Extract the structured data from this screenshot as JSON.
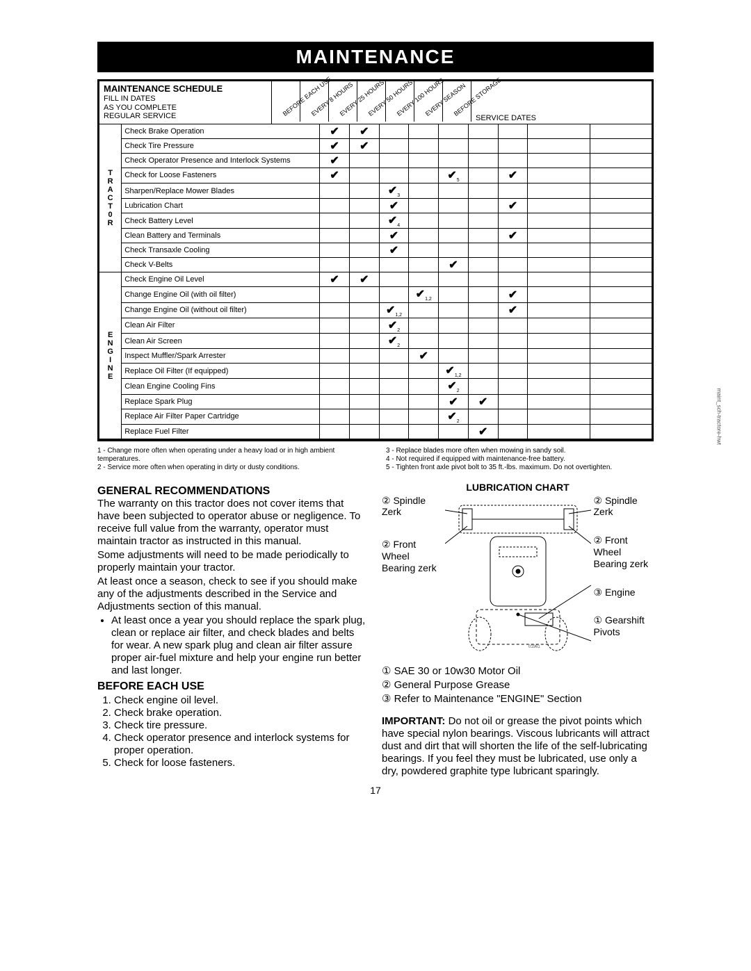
{
  "title": "MAINTENANCE",
  "schedule": {
    "title": "MAINTENANCE SCHEDULE",
    "subtitle": "FILL IN DATES\nAS YOU COMPLETE\nREGULAR SERVICE",
    "column_headers": [
      "BEFORE EACH USE",
      "EVERY 8 HOURS",
      "EVERY 25 HOURS",
      "EVERY 50 HOURS",
      "EVERY 100 HOURS",
      "EVERY SEASON",
      "BEFORE STORAGE"
    ],
    "service_dates_label": "SERVICE DATES",
    "section1_label": "TRACT0R",
    "section2_label": "ENGINE",
    "rows1": [
      {
        "task": "Check Brake Operation",
        "c": [
          1,
          1,
          0,
          0,
          0,
          0,
          0
        ],
        "s": [
          "",
          "",
          "",
          "",
          "",
          "",
          ""
        ]
      },
      {
        "task": "Check Tire Pressure",
        "c": [
          1,
          1,
          0,
          0,
          0,
          0,
          0
        ],
        "s": [
          "",
          "",
          "",
          "",
          "",
          "",
          ""
        ]
      },
      {
        "task": "Check Operator Presence and Interlock Systems",
        "c": [
          1,
          0,
          0,
          0,
          0,
          0,
          0
        ],
        "s": [
          "",
          "",
          "",
          "",
          "",
          "",
          ""
        ]
      },
      {
        "task": "Check for Loose Fasteners",
        "c": [
          1,
          0,
          0,
          0,
          1,
          0,
          1
        ],
        "s": [
          "",
          "",
          "",
          "",
          "5",
          "",
          ""
        ]
      },
      {
        "task": "Sharpen/Replace Mower Blades",
        "c": [
          0,
          0,
          1,
          0,
          0,
          0,
          0
        ],
        "s": [
          "",
          "",
          "3",
          "",
          "",
          "",
          ""
        ]
      },
      {
        "task": "Lubrication Chart",
        "c": [
          0,
          0,
          1,
          0,
          0,
          0,
          1
        ],
        "s": [
          "",
          "",
          "",
          "",
          "",
          "",
          ""
        ]
      },
      {
        "task": "Check Battery Level",
        "c": [
          0,
          0,
          1,
          0,
          0,
          0,
          0
        ],
        "s": [
          "",
          "",
          "4",
          "",
          "",
          "",
          ""
        ]
      },
      {
        "task": "Clean Battery and Terminals",
        "c": [
          0,
          0,
          1,
          0,
          0,
          0,
          1
        ],
        "s": [
          "",
          "",
          "",
          "",
          "",
          "",
          ""
        ]
      },
      {
        "task": "Check Transaxle Cooling",
        "c": [
          0,
          0,
          1,
          0,
          0,
          0,
          0
        ],
        "s": [
          "",
          "",
          "",
          "",
          "",
          "",
          ""
        ]
      },
      {
        "task": "Check V-Belts",
        "c": [
          0,
          0,
          0,
          0,
          1,
          0,
          0
        ],
        "s": [
          "",
          "",
          "",
          "",
          "",
          "",
          ""
        ]
      }
    ],
    "rows2": [
      {
        "task": "Check Engine Oil Level",
        "c": [
          1,
          1,
          0,
          0,
          0,
          0,
          0
        ],
        "s": [
          "",
          "",
          "",
          "",
          "",
          "",
          ""
        ]
      },
      {
        "task": "Change Engine Oil (with oil filter)",
        "c": [
          0,
          0,
          0,
          1,
          0,
          0,
          1
        ],
        "s": [
          "",
          "",
          "",
          "1,2",
          "",
          "",
          ""
        ]
      },
      {
        "task": "Change Engine Oil (without oil filter)",
        "c": [
          0,
          0,
          1,
          0,
          0,
          0,
          1
        ],
        "s": [
          "",
          "",
          "1,2",
          "",
          "",
          "",
          ""
        ]
      },
      {
        "task": "Clean Air Filter",
        "c": [
          0,
          0,
          1,
          0,
          0,
          0,
          0
        ],
        "s": [
          "",
          "",
          "2",
          "",
          "",
          "",
          ""
        ]
      },
      {
        "task": "Clean Air Screen",
        "c": [
          0,
          0,
          1,
          0,
          0,
          0,
          0
        ],
        "s": [
          "",
          "",
          "2",
          "",
          "",
          "",
          ""
        ]
      },
      {
        "task": "Inspect Muffler/Spark Arrester",
        "c": [
          0,
          0,
          0,
          1,
          0,
          0,
          0
        ],
        "s": [
          "",
          "",
          "",
          "",
          "",
          "",
          ""
        ]
      },
      {
        "task": "Replace Oil Filter (If equipped)",
        "c": [
          0,
          0,
          0,
          0,
          1,
          0,
          0
        ],
        "s": [
          "",
          "",
          "",
          "",
          "1,2",
          "",
          ""
        ]
      },
      {
        "task": "Clean Engine Cooling Fins",
        "c": [
          0,
          0,
          0,
          0,
          1,
          0,
          0
        ],
        "s": [
          "",
          "",
          "",
          "",
          "2",
          "",
          ""
        ]
      },
      {
        "task": "Replace Spark Plug",
        "c": [
          0,
          0,
          0,
          0,
          1,
          1,
          0
        ],
        "s": [
          "",
          "",
          "",
          "",
          "",
          "",
          ""
        ]
      },
      {
        "task": "Replace Air Filter Paper Cartridge",
        "c": [
          0,
          0,
          0,
          0,
          1,
          0,
          0
        ],
        "s": [
          "",
          "",
          "",
          "",
          "2",
          "",
          ""
        ]
      },
      {
        "task": "Replace Fuel Filter",
        "c": [
          0,
          0,
          0,
          0,
          0,
          1,
          0
        ],
        "s": [
          "",
          "",
          "",
          "",
          "",
          "",
          ""
        ]
      }
    ]
  },
  "footnotes_left": [
    "1 - Change more often when operating under a heavy load or in high ambient temperatures.",
    "2 - Service more often when operating in dirty or dusty conditions."
  ],
  "footnotes_right": [
    "3 - Replace blades more often when mowing in sandy soil.",
    "4 - Not required if equipped with maintenance-free battery.",
    "5 - Tighten front axle pivot bolt to 35 ft.-lbs. maximum. Do not overtighten."
  ],
  "general": {
    "heading": "GENERAL RECOMMENDATIONS",
    "p1": "The warranty on this tractor does not cover items that have been subjected to operator abuse or negligence.  To receive full value from the warranty, operator must maintain tractor as instructed in this manual.",
    "p2": "Some adjustments will need to be made periodically to properly maintain your tractor.",
    "p3": "At least once a season, check to see if you should make any of the adjustments described in the Service and Adjustments section of this manual.",
    "bullet": "At least once a year you should replace the spark plug, clean or replace air filter, and check blades and belts for wear.  A new spark plug and clean air filter assure proper air-fuel mixture and help your engine run better and last longer."
  },
  "before": {
    "heading": "BEFORE EACH USE",
    "items": [
      "Check engine oil level.",
      "Check brake operation.",
      "Check tire pressure.",
      "Check operator presence and interlock systems for proper operation.",
      "Check for loose fasteners."
    ]
  },
  "lubrication": {
    "title": "LUBRICATION CHART",
    "labels": {
      "spindle_l": "Spindle Zerk",
      "spindle_r": "Spindle Zerk",
      "wheel_l": "Front Wheel Bearing zerk",
      "wheel_r": "Front Wheel Bearing zerk",
      "engine": "Engine",
      "gearshift": "Gearshift Pivots"
    },
    "nums": {
      "spindle": "②",
      "wheel": "②",
      "engine": "③",
      "gearshift": "①"
    },
    "legend": [
      {
        "n": "①",
        "t": "SAE 30 or 10w30 Motor Oil"
      },
      {
        "n": "②",
        "t": "General Purpose Grease"
      },
      {
        "n": "③",
        "t": "Refer to Maintenance \"ENGINE\" Section"
      }
    ],
    "important_label": "IMPORTANT:",
    "important": "Do not oil or grease the pivot points which have special nylon bearings.  Viscous lubricants will attract dust and dirt that will shorten the life of the self-lubricating bearings.  If you feel they must be lubricated, use only a dry, powdered graphite type lubricant sparingly."
  },
  "page_number": "17",
  "side_text": "maint_sch-tractore-hwt"
}
